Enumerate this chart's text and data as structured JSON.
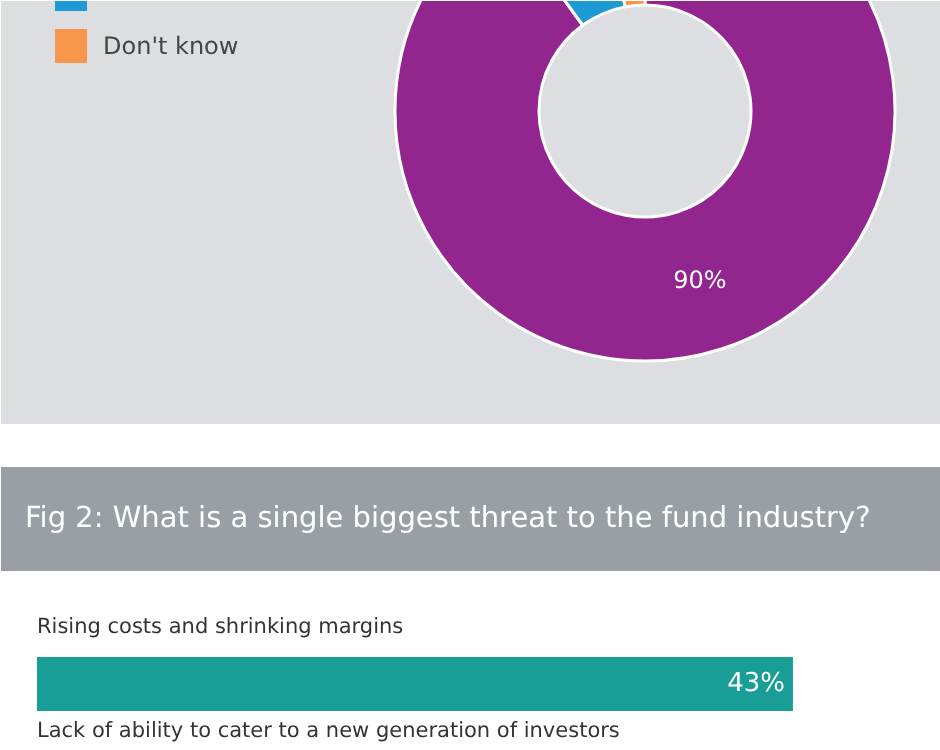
{
  "chart_data": [
    {
      "type": "donut",
      "categories": [
        null,
        null,
        "Don't know"
      ],
      "values": [
        90,
        7,
        3
      ],
      "colors": [
        "#93268e",
        "#1b9ad6",
        "#f7964a"
      ],
      "value_labels": [
        "90%",
        null,
        null
      ],
      "legend": "left"
    },
    {
      "type": "bar",
      "orientation": "horizontal",
      "title": "Fig 2: What is a single biggest threat to the fund industry?",
      "categories": [
        "Rising costs and shrinking margins",
        "Lack of ability to cater to a new generation of investors"
      ],
      "values": [
        43,
        null
      ],
      "color": "#189e96",
      "value_labels": [
        "43%",
        null
      ]
    }
  ]
}
